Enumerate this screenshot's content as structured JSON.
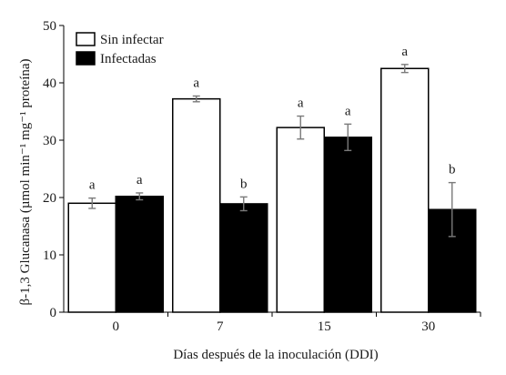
{
  "chart_data": {
    "type": "bar",
    "title": "",
    "xlabel": "Días después de la inoculación (DDI)",
    "ylabel": "β-1,3 Glucanasa (µmol min⁻¹ mg⁻¹ proteína)",
    "categories": [
      "0",
      "7",
      "15",
      "30"
    ],
    "ylim": [
      0,
      50
    ],
    "yticks": [
      0,
      10,
      20,
      30,
      40,
      50
    ],
    "grid": false,
    "legend_position": "top-left",
    "series": [
      {
        "name": "Sin infectar",
        "color": "#ffffff",
        "stroke": "#000000",
        "values": [
          19,
          37.2,
          32.2,
          42.5
        ],
        "errors": [
          0.9,
          0.5,
          2.0,
          0.7
        ],
        "labels": [
          "a",
          "a",
          "a",
          "a"
        ]
      },
      {
        "name": "Infectadas",
        "color": "#000000",
        "stroke": "#000000",
        "values": [
          20.2,
          18.9,
          30.5,
          17.9
        ],
        "errors": [
          0.6,
          1.2,
          2.3,
          4.7
        ],
        "labels": [
          "a",
          "b",
          "a",
          "b"
        ]
      }
    ]
  }
}
